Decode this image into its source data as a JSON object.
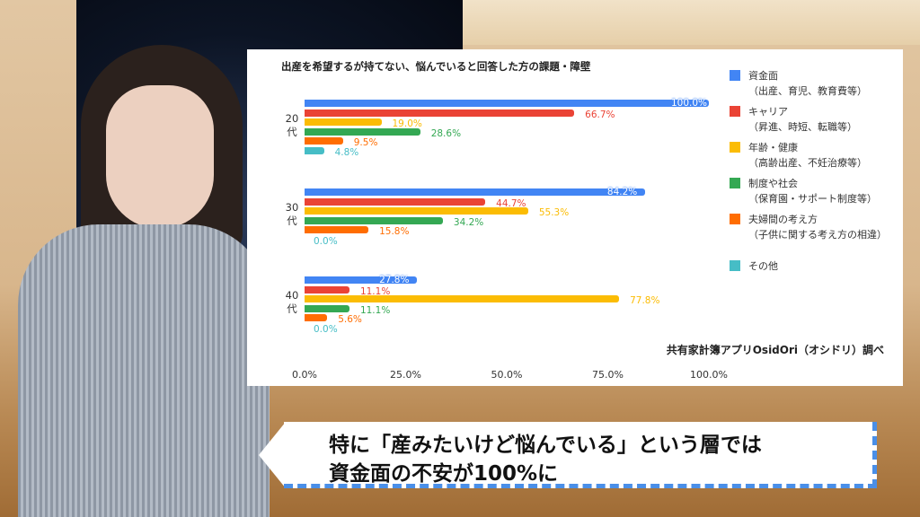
{
  "chart_data": {
    "type": "bar",
    "orientation": "horizontal",
    "title": "出産を希望するが持てない、悩んでいると回答した方の課題・障壁",
    "categories": [
      [
        "20",
        "代"
      ],
      [
        "30",
        "代"
      ],
      [
        "40",
        "代"
      ]
    ],
    "series": [
      {
        "name": "資金面",
        "sub": "（出産、育児、教育費等）",
        "color": "#4285f4",
        "values": [
          100.0,
          84.2,
          27.8
        ]
      },
      {
        "name": "キャリア",
        "sub": "（昇進、時短、転職等）",
        "color": "#ea4335",
        "values": [
          66.7,
          44.7,
          11.1
        ]
      },
      {
        "name": "年齢・健康",
        "sub": "（高齢出産、不妊治療等）",
        "color": "#fbbc04",
        "values": [
          19.0,
          55.3,
          77.8
        ]
      },
      {
        "name": "制度や社会",
        "sub": "（保育園・サポート制度等）",
        "color": "#34a853",
        "values": [
          28.6,
          34.2,
          11.1
        ]
      },
      {
        "name": "夫婦間の考え方",
        "sub": "（子供に関する考え方の相違）",
        "color": "#ff6d01",
        "values": [
          9.5,
          15.8,
          5.6
        ]
      },
      {
        "name": "その他",
        "sub": "",
        "color": "#46bdc6",
        "values": [
          4.8,
          0.0,
          0.0
        ]
      }
    ],
    "xlim": [
      0,
      100
    ],
    "xticks": [
      "0.0%",
      "25.0%",
      "50.0%",
      "75.0%",
      "100.0%"
    ],
    "legend": "right",
    "source": "共有家計簿アプリOsidOri（オシドリ）調べ"
  },
  "caption": {
    "line1": "特に「産みたいけど悩んでいる」という層では",
    "line2": "資金面の不安が100%に"
  }
}
